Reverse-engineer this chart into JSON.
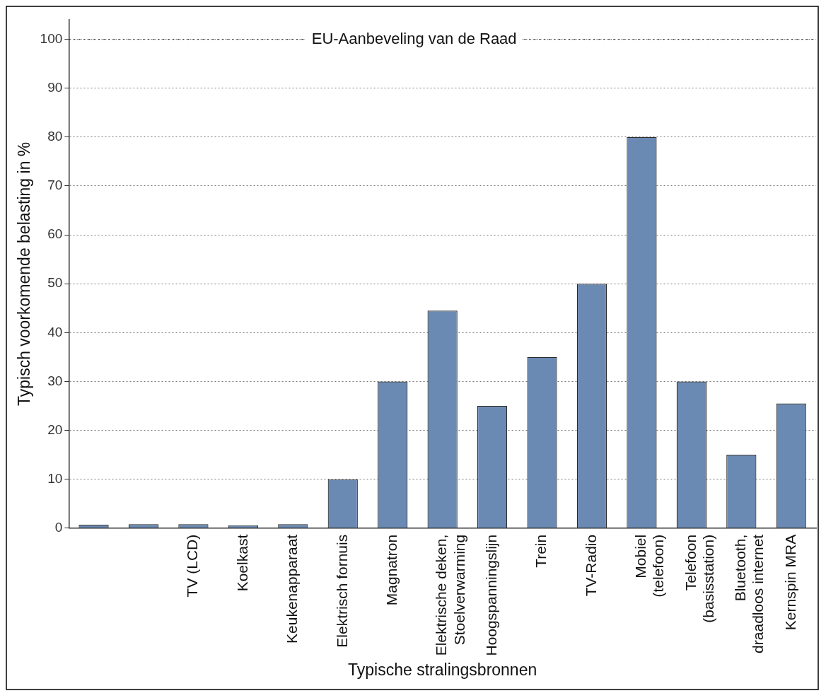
{
  "chart_data": {
    "type": "bar",
    "xlabel": "Typische stralingsbronnen",
    "ylabel": "Typisch voorkomende belasting in %",
    "categories": [
      null,
      null,
      "TV (LCD)",
      "Koelkast",
      "Keukenapparaat",
      "Elektrisch fornuis",
      "Magnatron",
      "Elektrische deken,\nStoelverwarming",
      "Hoogspanningslijn",
      "Trein",
      "TV-Radio",
      "Mobiel\n(telefoon)",
      "Telefoon\n(basisstation)",
      "Bluetooth,\ndraadloos internet",
      "Kernspin MRA"
    ],
    "values": [
      0.7,
      0.8,
      0.8,
      0.6,
      0.8,
      10,
      30,
      44.5,
      25,
      35,
      50,
      80,
      30,
      15,
      25.5
    ],
    "color": "#6a8ab4",
    "ylim": [
      0,
      104
    ],
    "yticks": [
      0,
      10,
      20,
      30,
      40,
      50,
      60,
      70,
      80,
      90,
      100
    ],
    "grid": "y",
    "legend": false,
    "ref_lines": [
      {
        "axis": "y",
        "value": 100,
        "label": "EU-Aanbeveling van de Raad"
      }
    ]
  }
}
